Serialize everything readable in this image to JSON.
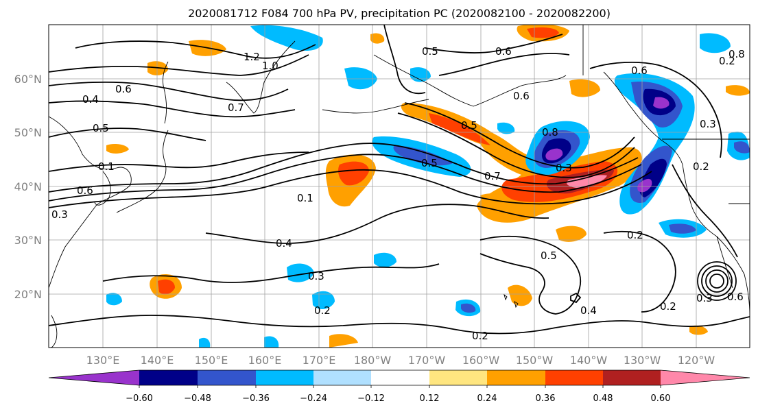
{
  "title": "2020081712 F084 700 hPa PV, precipitation PC (2020082100 - 2020082200)",
  "lat_labels": [
    "60°N",
    "50°N",
    "40°N",
    "30°N",
    "20°N"
  ],
  "lon_labels": [
    "130°E",
    "140°E",
    "150°E",
    "160°E",
    "170°E",
    "180°W",
    "170°W",
    "160°W",
    "150°W",
    "140°W",
    "130°W",
    "120°W"
  ],
  "colorbar": {
    "ticks": [
      "−0.60",
      "−0.48",
      "−0.36",
      "−0.24",
      "−0.12",
      "0.12",
      "0.24",
      "0.36",
      "0.48",
      "0.60"
    ],
    "colors": [
      "#9933cc",
      "#000088",
      "#3355cc",
      "#00bbff",
      "#b0e0ff",
      "#ffffff",
      "#ffe680",
      "#ffa000",
      "#ff4000",
      "#b02020",
      "#ff88aa"
    ]
  },
  "contour_labels": [
    "1.2",
    "1.0",
    "0.6",
    "0.4",
    "0.5",
    "0.7",
    "0.1",
    "0.6",
    "0.3",
    "0.5",
    "0.6",
    "0.6",
    "0.5",
    "0.5",
    "0.6",
    "0.8",
    "0.3",
    "0.7",
    "0.1",
    "0.4",
    "0.3",
    "0.2",
    "0.5",
    "0.2",
    "0.4",
    "0.2",
    "0.2",
    "0.3",
    "0.6",
    "0.2",
    "0.8",
    "0.3",
    "0.2"
  ]
}
